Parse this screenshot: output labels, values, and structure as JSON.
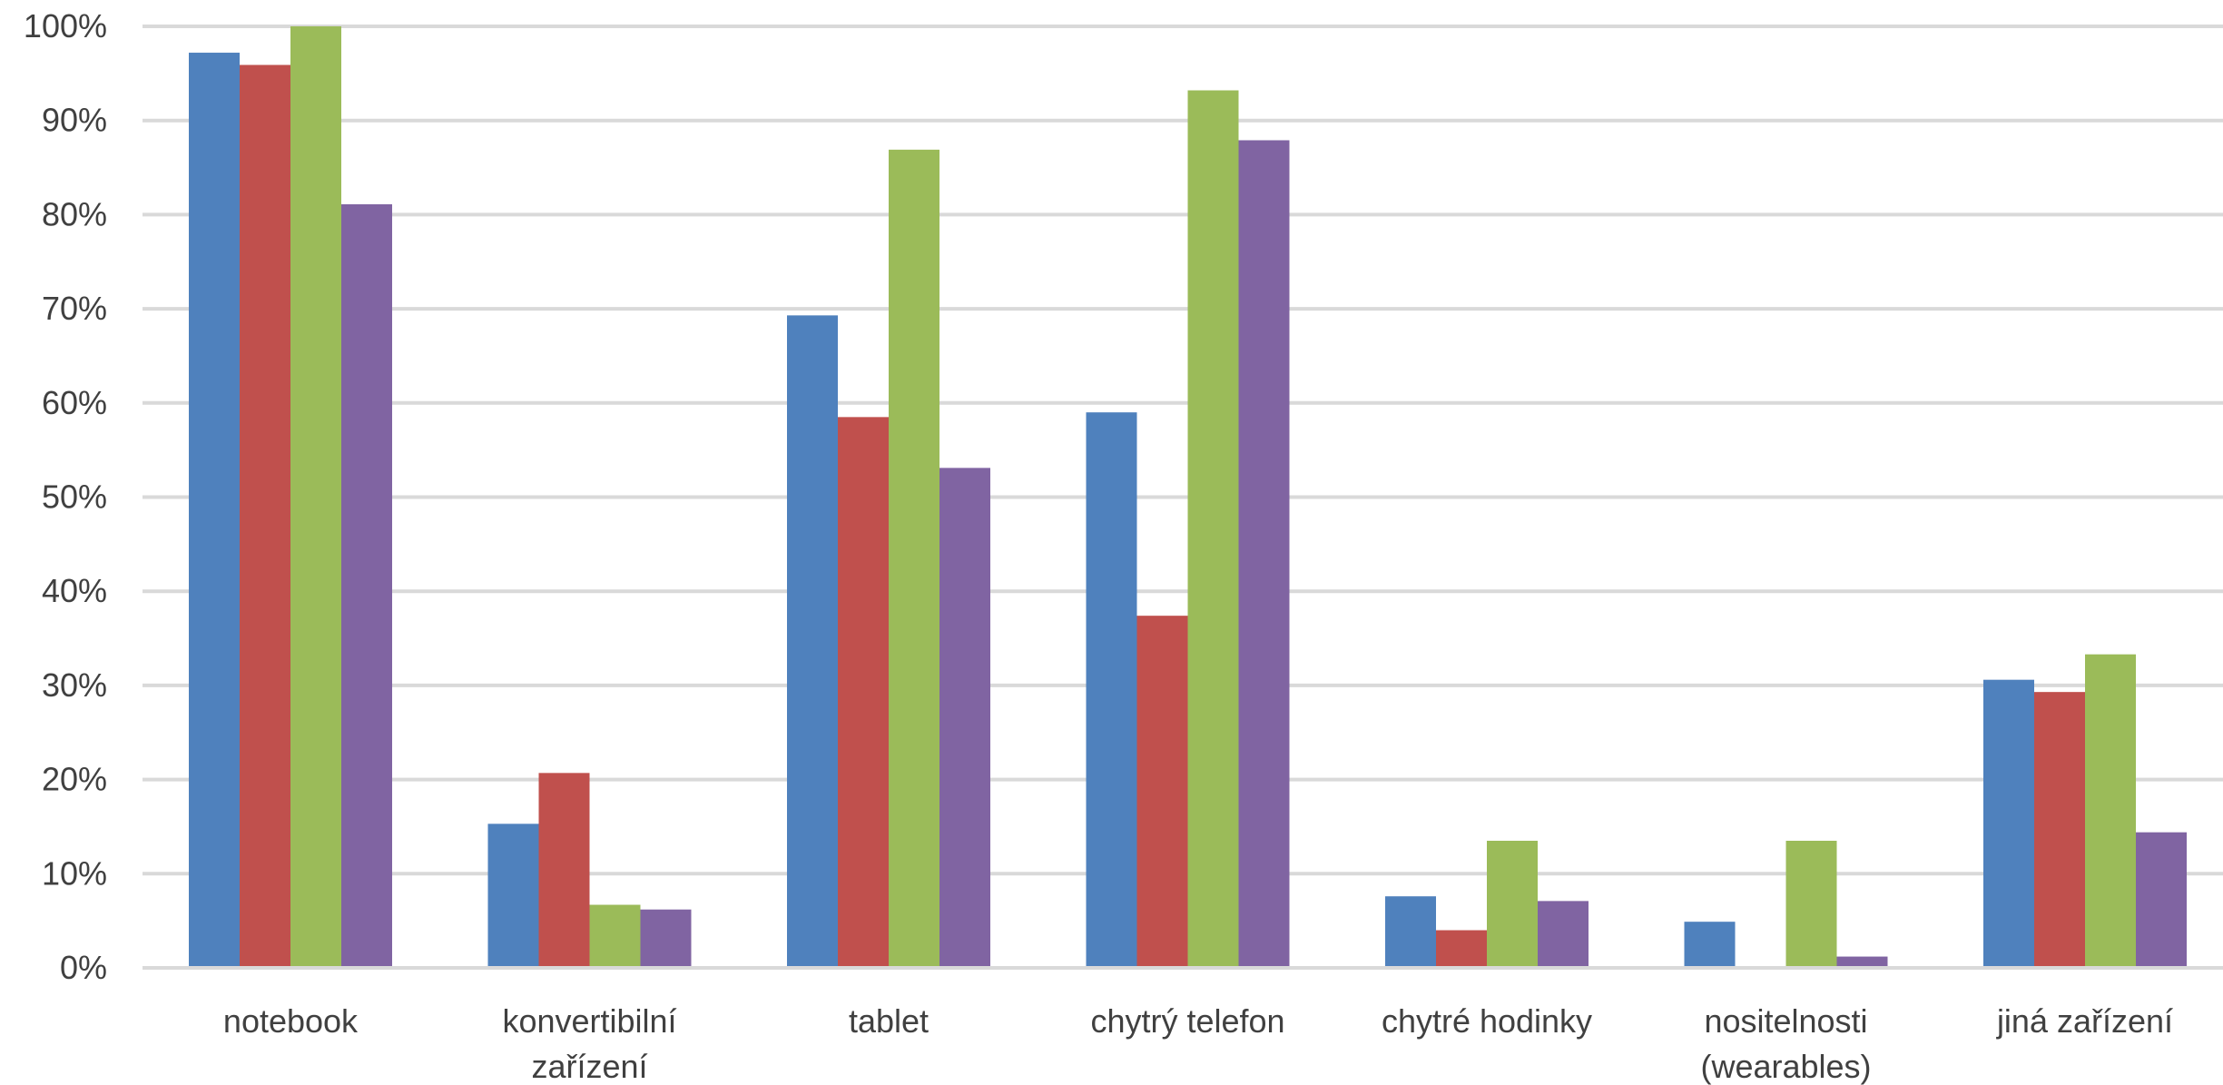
{
  "chart_data": {
    "type": "bar",
    "title": "",
    "xlabel": "",
    "ylabel": "",
    "ylim": [
      0,
      100
    ],
    "yticks": [
      "0%",
      "10%",
      "20%",
      "30%",
      "40%",
      "50%",
      "60%",
      "70%",
      "80%",
      "90%",
      "100%"
    ],
    "grid": true,
    "legend": "none",
    "categories": [
      [
        "notebook"
      ],
      [
        "konvertibilní",
        "zařízení"
      ],
      [
        "tablet"
      ],
      [
        "chytrý telefon"
      ],
      [
        "chytré hodinky"
      ],
      [
        "nositelnosti",
        "(wearables)"
      ],
      [
        "jiná zařízení"
      ]
    ],
    "series": [
      {
        "color": "#4f81bd",
        "values": [
          97.2,
          15.3,
          69.3,
          59.0,
          7.6,
          4.9,
          30.6
        ]
      },
      {
        "color": "#c0504d",
        "values": [
          95.9,
          20.7,
          58.5,
          37.4,
          4.0,
          0.0,
          29.3
        ]
      },
      {
        "color": "#9bbb59",
        "values": [
          100.0,
          6.7,
          86.9,
          93.2,
          13.5,
          13.5,
          33.3
        ]
      },
      {
        "color": "#8064a2",
        "values": [
          81.1,
          6.2,
          53.1,
          87.9,
          7.1,
          1.2,
          14.4
        ]
      }
    ]
  }
}
